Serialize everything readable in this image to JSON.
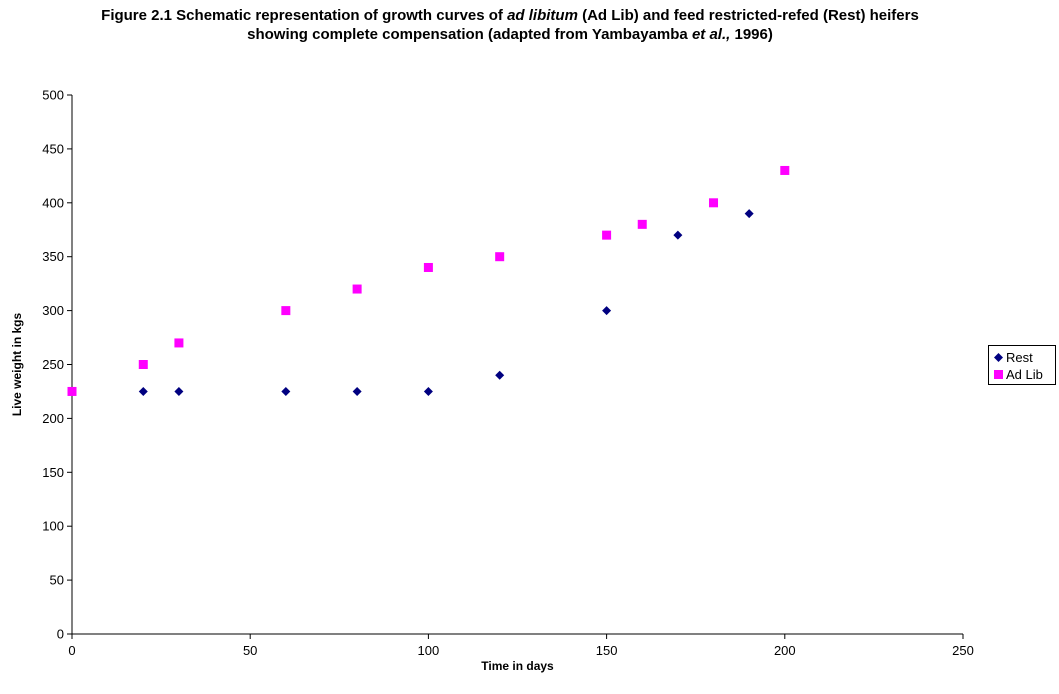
{
  "title": {
    "part1": "Figure 2.1 Schematic representation of growth curves of ",
    "italic1": "ad libitum",
    "part2": " (Ad Lib) and feed restricted-refed (Rest) heifers showing complete compensation (adapted from Yambayamba ",
    "italic2": "et al.,",
    "part3": " 1996)"
  },
  "chart_data": {
    "type": "scatter",
    "title": "Figure 2.1 Schematic representation of growth curves of ad libitum (Ad Lib) and feed restricted-refed (Rest) heifers showing complete compensation (adapted from Yambayamba et al., 1996)",
    "xlabel": "Time in days",
    "ylabel": "Live weight in kgs",
    "xlim": [
      0,
      250
    ],
    "ylim": [
      0,
      500
    ],
    "xticks": [
      0,
      50,
      100,
      150,
      200,
      250
    ],
    "yticks": [
      0,
      50,
      100,
      150,
      200,
      250,
      300,
      350,
      400,
      450,
      500
    ],
    "grid": false,
    "legend_position": "right",
    "series": [
      {
        "name": "Rest",
        "marker": "diamond",
        "color": "#000080",
        "x": [
          20,
          30,
          60,
          80,
          100,
          120,
          150,
          170,
          190
        ],
        "y": [
          225,
          225,
          225,
          225,
          225,
          240,
          300,
          370,
          390
        ]
      },
      {
        "name": "Ad Lib",
        "marker": "square",
        "color": "#FF00FF",
        "x": [
          0,
          20,
          30,
          60,
          80,
          100,
          120,
          150,
          160,
          180,
          200
        ],
        "y": [
          225,
          250,
          270,
          300,
          320,
          340,
          350,
          370,
          380,
          400,
          430
        ]
      }
    ]
  }
}
